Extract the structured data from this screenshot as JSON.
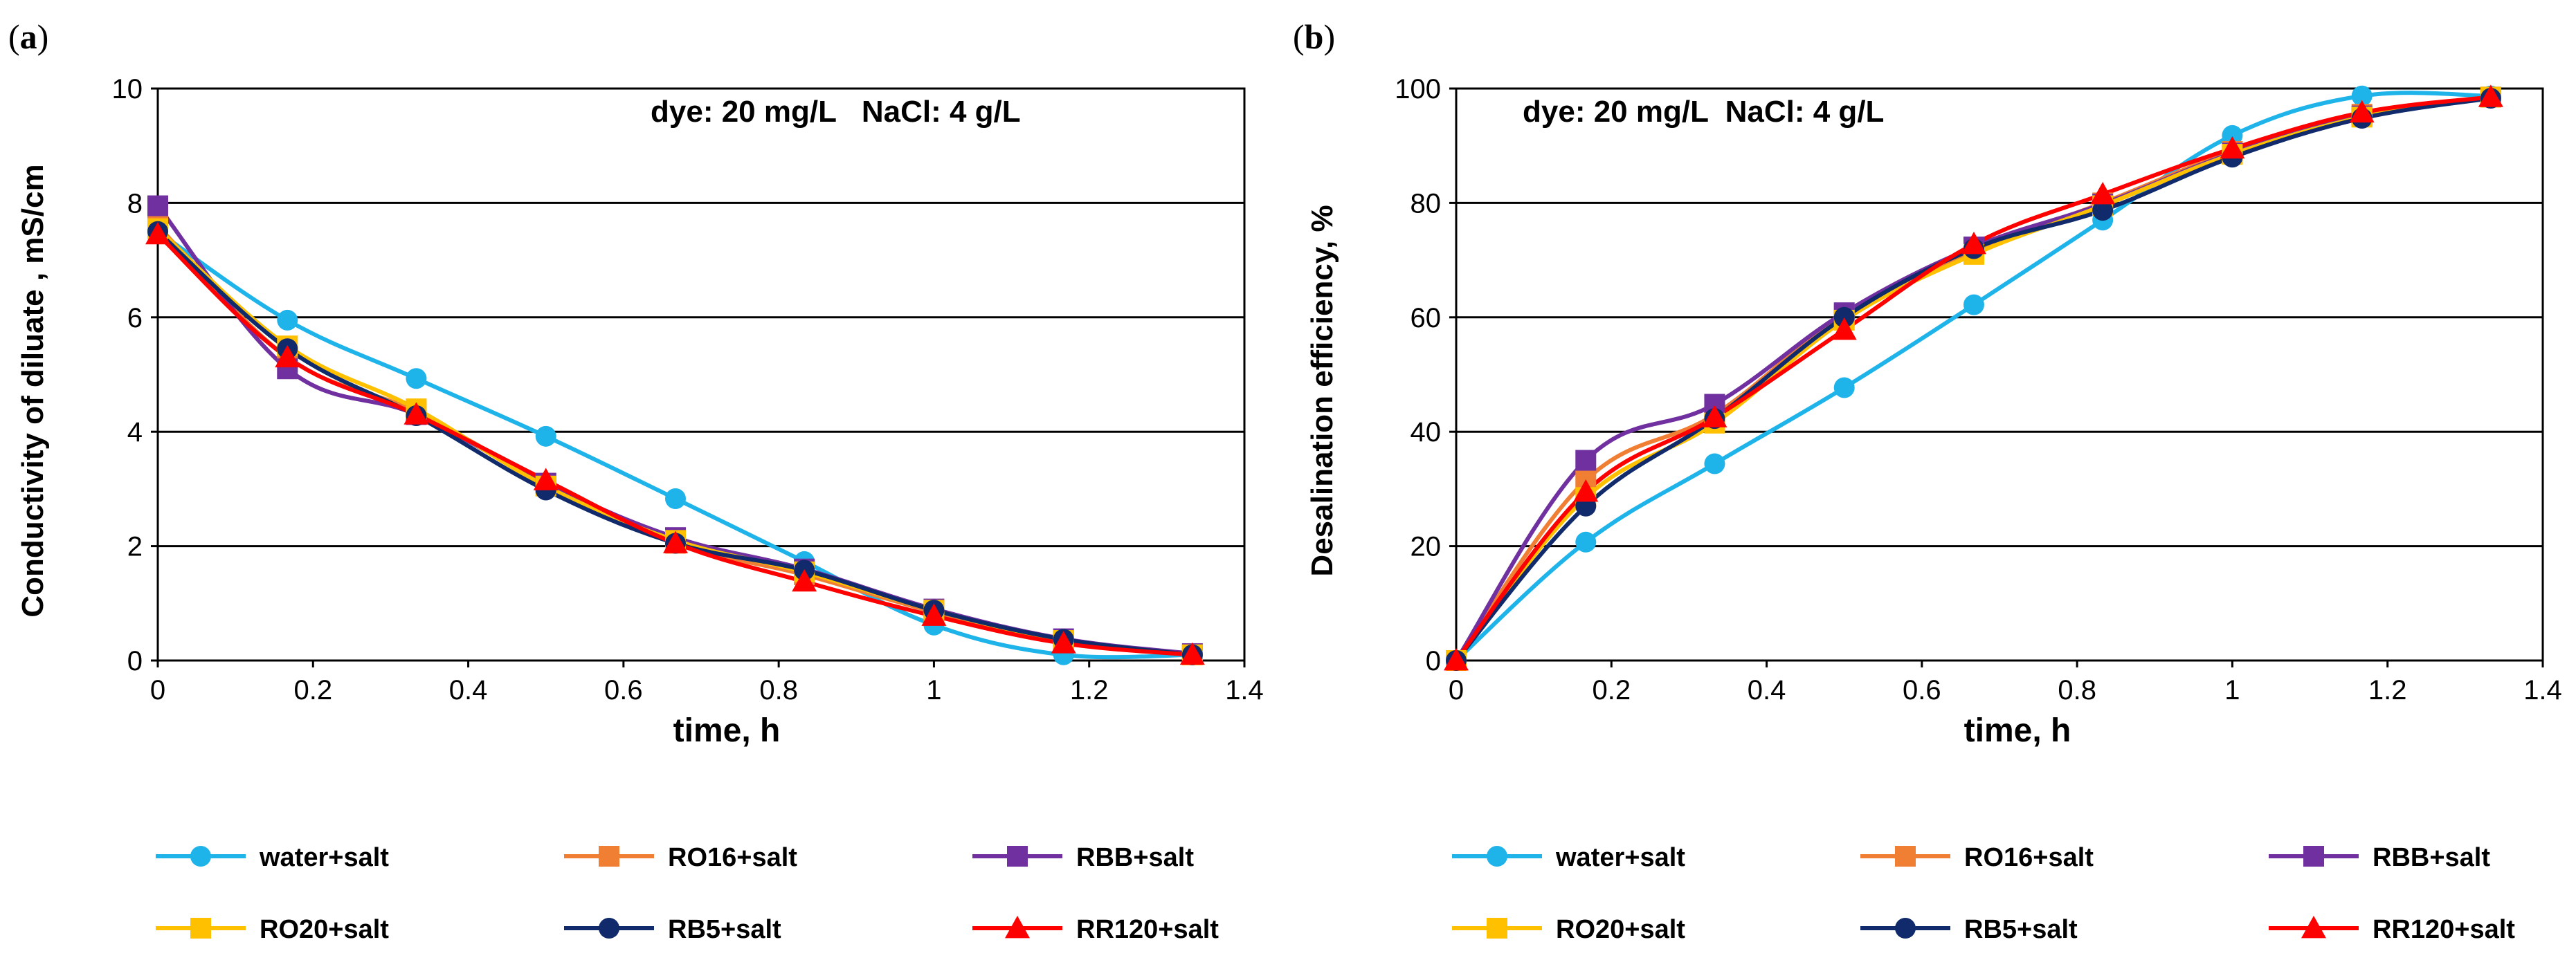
{
  "chart_data": [
    {
      "type": "line",
      "panel_label": "a",
      "annotation": "dye: 20 mg/L   NaCl: 4 g/L",
      "xlabel": "time, h",
      "ylabel": "Conductivity of diluate , mS/cm",
      "xlim": [
        0,
        1.4
      ],
      "ylim": [
        0,
        10
      ],
      "xticks": [
        0,
        0.2,
        0.4,
        0.6,
        0.8,
        1,
        1.2,
        1.4
      ],
      "yticks": [
        0,
        2,
        4,
        6,
        8,
        10
      ],
      "xtick_labels": [
        "0",
        "0.2",
        "0.4",
        "0.6",
        "0.8",
        "1",
        "1.2",
        "1.4"
      ],
      "ytick_labels": [
        "0",
        "2",
        "4",
        "6",
        "8",
        "10"
      ],
      "grid": "horizontal",
      "series": [
        {
          "name": "water+salt",
          "color": "#1EB4EA",
          "marker": "circle",
          "x": [
            0,
            0.167,
            0.333,
            0.5,
            0.667,
            0.833,
            1.0,
            1.167,
            1.333
          ],
          "values": [
            7.5,
            5.95,
            4.93,
            3.92,
            2.83,
            1.73,
            0.62,
            0.1,
            0.1
          ]
        },
        {
          "name": "RO16+salt",
          "color": "#F07F34",
          "marker": "square",
          "x": [
            0,
            0.167,
            0.333,
            0.5,
            0.667,
            0.833,
            1.0,
            1.167,
            1.333
          ],
          "values": [
            7.6,
            5.3,
            4.35,
            3.1,
            2.05,
            1.5,
            0.85,
            0.33,
            0.1
          ]
        },
        {
          "name": "RBB+salt",
          "color": "#7030A0",
          "marker": "square",
          "x": [
            0,
            0.167,
            0.333,
            0.5,
            0.667,
            0.833,
            1.0,
            1.167,
            1.333
          ],
          "values": [
            7.95,
            5.1,
            4.3,
            3.1,
            2.15,
            1.6,
            0.9,
            0.38,
            0.12
          ]
        },
        {
          "name": "RO20+salt",
          "color": "#FFC000",
          "marker": "square",
          "x": [
            0,
            0.167,
            0.333,
            0.5,
            0.667,
            0.833,
            1.0,
            1.167,
            1.333
          ],
          "values": [
            7.55,
            5.5,
            4.4,
            3.05,
            2.1,
            1.55,
            0.88,
            0.35,
            0.1
          ]
        },
        {
          "name": "RB5+salt",
          "color": "#102A6B",
          "marker": "circle",
          "x": [
            0,
            0.167,
            0.333,
            0.5,
            0.667,
            0.833,
            1.0,
            1.167,
            1.333
          ],
          "values": [
            7.5,
            5.45,
            4.28,
            2.98,
            2.05,
            1.58,
            0.88,
            0.37,
            0.1
          ]
        },
        {
          "name": "RR120+salt",
          "color": "#FF0000",
          "marker": "triangle",
          "x": [
            0,
            0.167,
            0.333,
            0.5,
            0.667,
            0.833,
            1.0,
            1.167,
            1.333
          ],
          "values": [
            7.45,
            5.3,
            4.3,
            3.15,
            2.05,
            1.38,
            0.78,
            0.3,
            0.1
          ]
        }
      ]
    },
    {
      "type": "line",
      "panel_label": "b",
      "annotation": "dye: 20 mg/L  NaCl: 4 g/L",
      "xlabel": "time, h",
      "ylabel": "Desalination efficiency, %",
      "xlim": [
        0,
        1.4
      ],
      "ylim": [
        0,
        100
      ],
      "xticks": [
        0,
        0.2,
        0.4,
        0.6,
        0.8,
        1,
        1.2,
        1.4
      ],
      "yticks": [
        0,
        20,
        40,
        60,
        80,
        100
      ],
      "xtick_labels": [
        "0",
        "0.2",
        "0.4",
        "0.6",
        "0.8",
        "1",
        "1.2",
        "1.4"
      ],
      "ytick_labels": [
        "0",
        "20",
        "40",
        "60",
        "80",
        "100"
      ],
      "grid": "horizontal",
      "series": [
        {
          "name": "water+salt",
          "color": "#1EB4EA",
          "marker": "circle",
          "x": [
            0,
            0.167,
            0.333,
            0.5,
            0.667,
            0.833,
            1.0,
            1.167,
            1.333
          ],
          "values": [
            0,
            20.7,
            34.4,
            47.7,
            62.2,
            77.0,
            91.8,
            98.7,
            98.7
          ]
        },
        {
          "name": "RO16+salt",
          "color": "#F07F34",
          "marker": "square",
          "x": [
            0,
            0.167,
            0.333,
            0.5,
            0.667,
            0.833,
            1.0,
            1.167,
            1.333
          ],
          "values": [
            0,
            31.5,
            43.0,
            60.5,
            71.5,
            80.0,
            89.0,
            95.5,
            98.5
          ]
        },
        {
          "name": "RBB+salt",
          "color": "#7030A0",
          "marker": "square",
          "x": [
            0,
            0.167,
            0.333,
            0.5,
            0.667,
            0.833,
            1.0,
            1.167,
            1.333
          ],
          "values": [
            0,
            35.0,
            44.8,
            60.8,
            72.3,
            79.8,
            88.7,
            95.2,
            98.5
          ]
        },
        {
          "name": "RO20+salt",
          "color": "#FFC000",
          "marker": "square",
          "x": [
            0,
            0.167,
            0.333,
            0.5,
            0.667,
            0.833,
            1.0,
            1.167,
            1.333
          ],
          "values": [
            0,
            28.5,
            41.5,
            59.5,
            71.0,
            79.5,
            88.5,
            95.0,
            98.5
          ]
        },
        {
          "name": "RB5+salt",
          "color": "#102A6B",
          "marker": "circle",
          "x": [
            0,
            0.167,
            0.333,
            0.5,
            0.667,
            0.833,
            1.0,
            1.167,
            1.333
          ],
          "values": [
            0,
            27.0,
            42.3,
            60.0,
            72.0,
            78.7,
            88.0,
            94.8,
            98.3
          ]
        },
        {
          "name": "RR120+salt",
          "color": "#FF0000",
          "marker": "triangle",
          "x": [
            0,
            0.167,
            0.333,
            0.5,
            0.667,
            0.833,
            1.0,
            1.167,
            1.333
          ],
          "values": [
            0,
            29.5,
            42.5,
            57.8,
            72.8,
            81.5,
            89.5,
            95.8,
            98.5
          ]
        }
      ]
    }
  ]
}
